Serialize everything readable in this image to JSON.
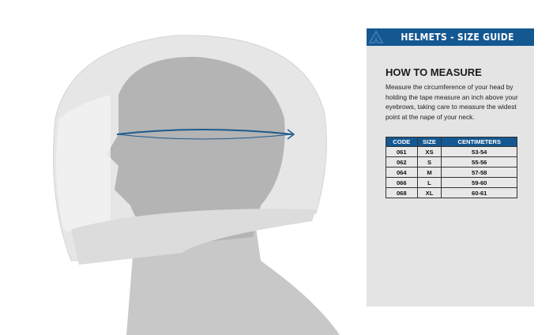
{
  "header": {
    "title": "HELMETS - SIZE GUIDE",
    "logo": "acerbis-logo"
  },
  "section": {
    "title": "HOW TO MEASURE",
    "description": "Measure the circumference of your head by holding the tape measure an inch above your eyebrows, taking care to measure the widest point at the nape of your neck."
  },
  "table": {
    "headers": [
      "CODE",
      "SIZE",
      "CENTIMETERS"
    ],
    "rows": [
      [
        "061",
        "XS",
        "53-54"
      ],
      [
        "062",
        "S",
        "55-56"
      ],
      [
        "064",
        "M",
        "57-58"
      ],
      [
        "066",
        "L",
        "59-60"
      ],
      [
        "068",
        "XL",
        "60-61"
      ]
    ]
  },
  "colors": {
    "accent": "#145891",
    "tape": "#1d5a8e"
  }
}
